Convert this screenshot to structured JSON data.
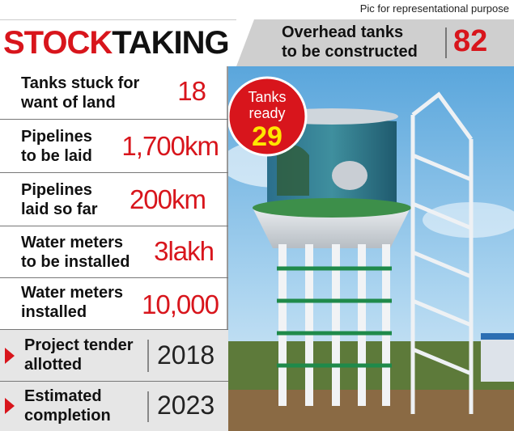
{
  "caption": "Pic for representational purpose",
  "header": {
    "title_part1": "STOCK",
    "title_part2": "TAKING",
    "overhead_line1": "Overhead tanks",
    "overhead_line2": "to be constructed",
    "overhead_value": "82"
  },
  "stats": [
    {
      "line1": "Tanks stuck for",
      "line2": "want of land",
      "value": "18"
    },
    {
      "line1": "Pipelines",
      "line2": "to be laid",
      "value": "1,700km"
    },
    {
      "line1": "Pipelines",
      "line2": "laid so far",
      "value": "200km"
    },
    {
      "line1": "Water meters",
      "line2": "to be installed",
      "value": "3lakh"
    },
    {
      "line1": "Water meters",
      "line2": "installed",
      "value": "10,000"
    }
  ],
  "milestones": [
    {
      "line1": "Project tender",
      "line2": "allotted",
      "value": "2018"
    },
    {
      "line1": "Estimated",
      "line2": "completion",
      "value": "2023"
    }
  ],
  "badge": {
    "line1": "Tanks",
    "line2": "ready",
    "value": "29"
  },
  "colors": {
    "accent_red": "#d8151c",
    "badge_yellow": "#ffe600",
    "sky": "#6fb4e0",
    "tower_green": "#1f8a4a"
  }
}
